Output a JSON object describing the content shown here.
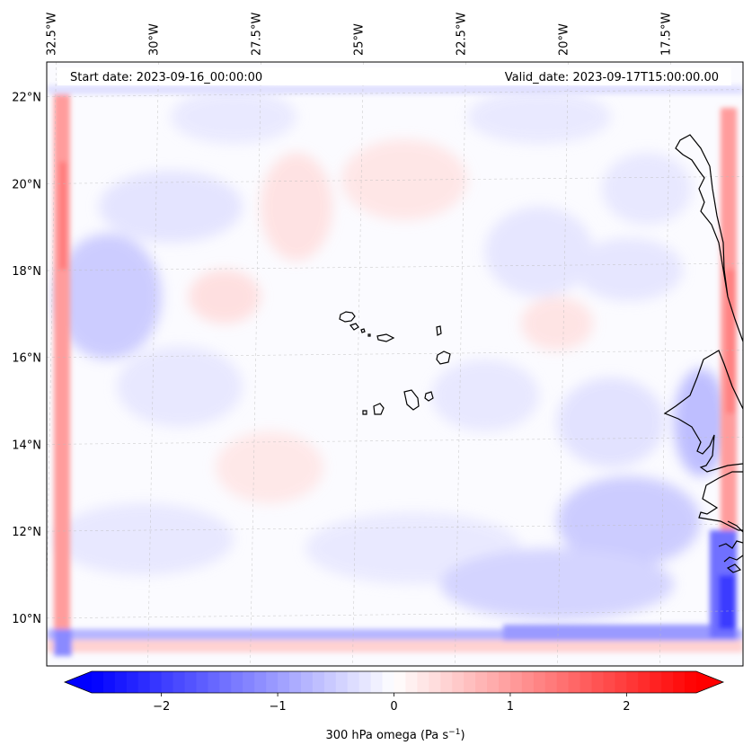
{
  "map": {
    "start_date": "Start date: 2023-09-16_00:00:00",
    "valid_date": "Valid_date: 2023-09-17T15:00:00.00",
    "lon_ticks": [
      {
        "lon": -32.5,
        "label": "32.5°W"
      },
      {
        "lon": -30.0,
        "label": "30°W"
      },
      {
        "lon": -27.5,
        "label": "27.5°W"
      },
      {
        "lon": -25.0,
        "label": "25°W"
      },
      {
        "lon": -22.5,
        "label": "22.5°W"
      },
      {
        "lon": -20.0,
        "label": "20°W"
      },
      {
        "lon": -17.5,
        "label": "17.5°W"
      }
    ],
    "lat_ticks": [
      {
        "lat": 22,
        "label": "22°N"
      },
      {
        "lat": 20,
        "label": "20°N"
      },
      {
        "lat": 18,
        "label": "18°N"
      },
      {
        "lat": 16,
        "label": "16°N"
      },
      {
        "lat": 14,
        "label": "14°N"
      },
      {
        "lat": 12,
        "label": "12°N"
      },
      {
        "lat": 10,
        "label": "10°N"
      }
    ],
    "extent": {
      "lon_min": -32.6,
      "lon_max": -15.6,
      "lat_min": 8.9,
      "lat_max": 22.8
    },
    "field": "300 hPa omega",
    "colormap": "bwr",
    "coast_color": "#000000",
    "gridline_color": "#bbbbbb"
  },
  "colorbar": {
    "label": "300 hPa omega (Pa s",
    "label_sup": "−1",
    "label_close": ")",
    "vmin": -2.6,
    "vmax": 2.6,
    "ticks": [
      {
        "value": -2,
        "label": "−2"
      },
      {
        "value": -1,
        "label": "−1"
      },
      {
        "value": 0,
        "label": "0"
      },
      {
        "value": 1,
        "label": "1"
      },
      {
        "value": 2,
        "label": "2"
      }
    ],
    "extend": "both",
    "min_color": "#0000ff",
    "mid_color": "#ffffff",
    "max_color": "#ff0000"
  }
}
